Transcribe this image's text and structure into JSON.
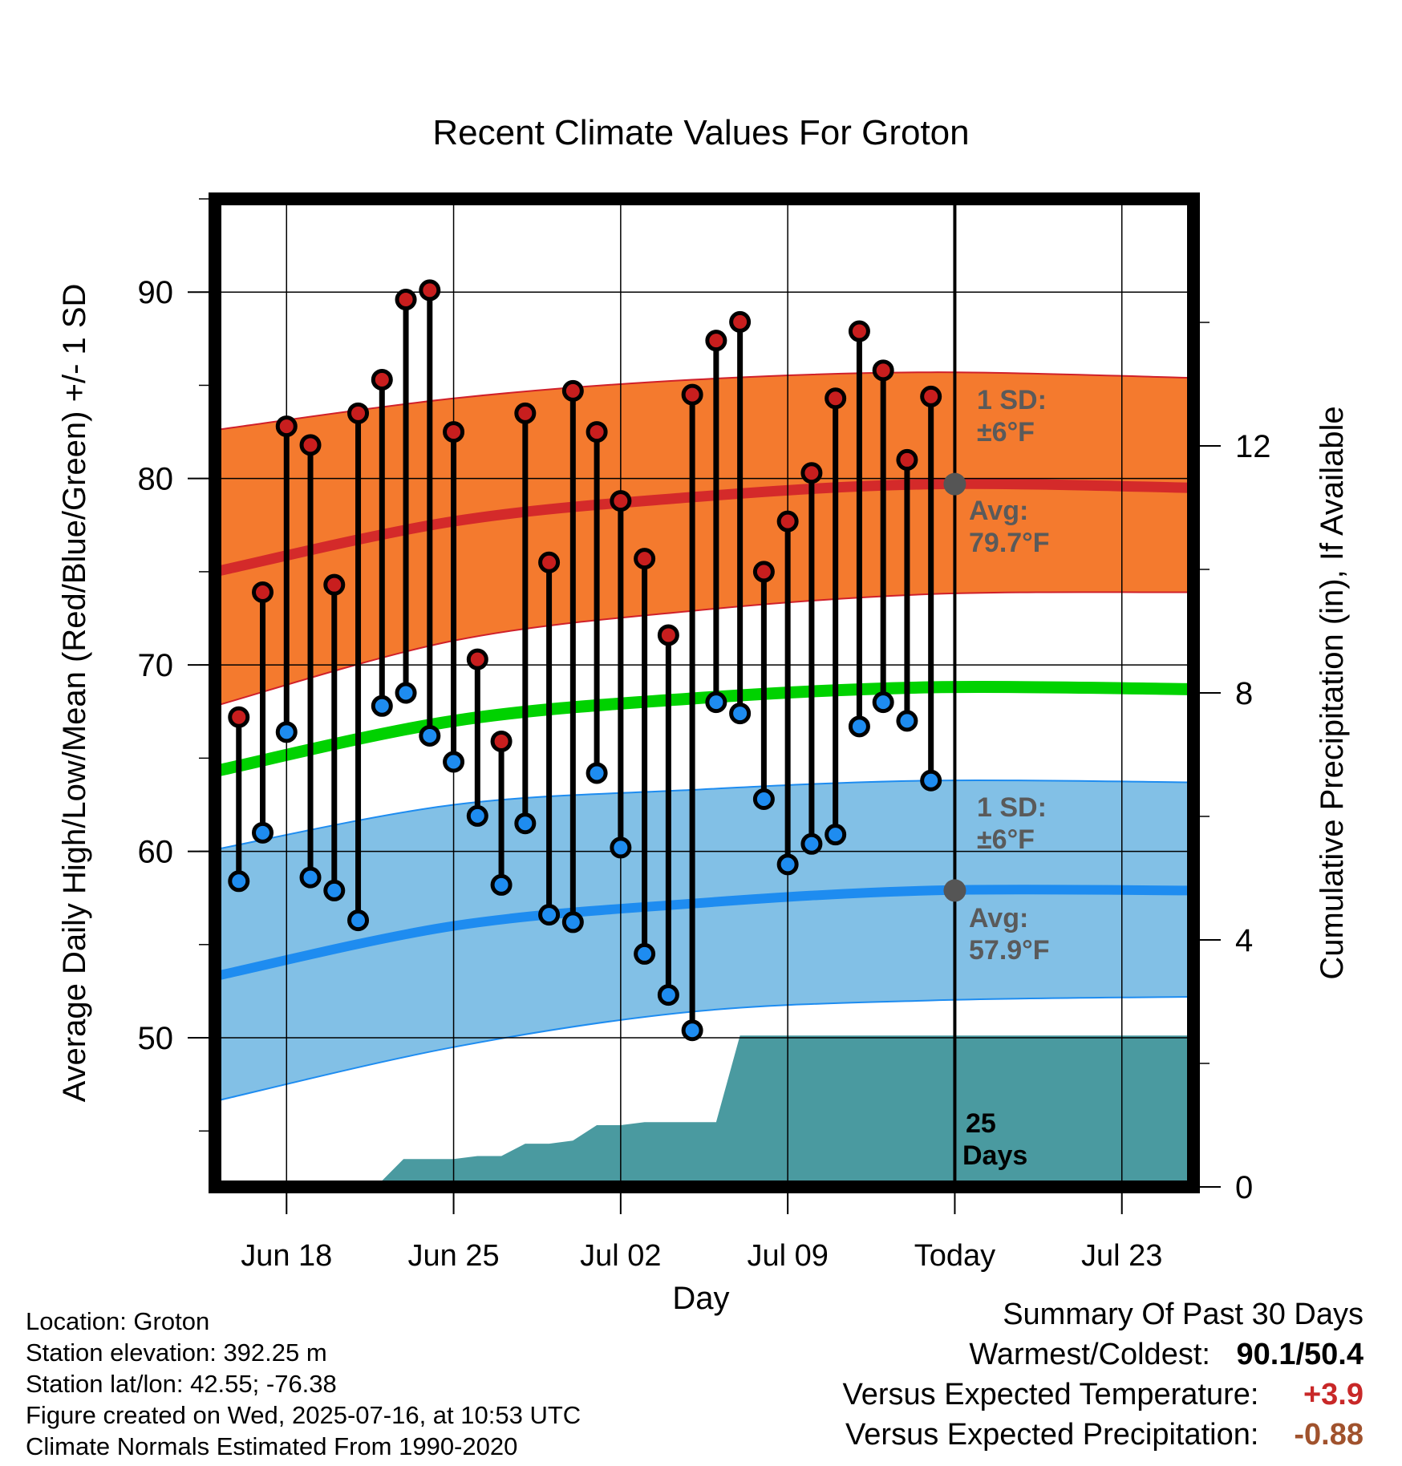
{
  "chart_data": {
    "type": "line",
    "title": "Recent Climate Values For Groton",
    "xlabel": "Day",
    "ylabel": "Average Daily High/Low/Mean (Red/Blue/Green) +/- 1 SD",
    "ylabel_right": "Cumulative Precipitation (in), If Available",
    "ylim": [
      42,
      95
    ],
    "ylim_right": [
      0,
      16
    ],
    "y_ticks": [
      50,
      60,
      70,
      80,
      90
    ],
    "y_ticks_right": [
      0,
      4,
      8,
      12
    ],
    "xlim": [
      "2025-06-15",
      "2025-07-26"
    ],
    "x_ticks": [
      {
        "date": "2025-06-18",
        "label": "Jun 18"
      },
      {
        "date": "2025-06-25",
        "label": "Jun 25"
      },
      {
        "date": "2025-07-02",
        "label": "Jul 02"
      },
      {
        "date": "2025-07-09",
        "label": "Jul 09"
      },
      {
        "date": "2025-07-16",
        "label": "Today"
      },
      {
        "date": "2025-07-23",
        "label": "Jul 23"
      }
    ],
    "grid": true,
    "today": "2025-07-16",
    "days": [
      "2025-06-16",
      "2025-06-17",
      "2025-06-18",
      "2025-06-19",
      "2025-06-20",
      "2025-06-21",
      "2025-06-22",
      "2025-06-23",
      "2025-06-24",
      "2025-06-25",
      "2025-06-26",
      "2025-06-27",
      "2025-06-28",
      "2025-06-29",
      "2025-06-30",
      "2025-07-01",
      "2025-07-02",
      "2025-07-03",
      "2025-07-04",
      "2025-07-05",
      "2025-07-06",
      "2025-07-07",
      "2025-07-08",
      "2025-07-09",
      "2025-07-10",
      "2025-07-11",
      "2025-07-12",
      "2025-07-13",
      "2025-07-14",
      "2025-07-15"
    ],
    "series": [
      {
        "name": "High",
        "color": "#c81e1e",
        "values": [
          67.2,
          73.9,
          82.8,
          81.8,
          74.3,
          83.5,
          85.3,
          89.6,
          90.1,
          82.5,
          70.3,
          65.9,
          83.5,
          75.5,
          84.7,
          82.5,
          78.8,
          75.7,
          71.6,
          84.5,
          87.4,
          88.4,
          75.0,
          77.7,
          80.3,
          84.3,
          87.9,
          85.8,
          81.0,
          84.4
        ]
      },
      {
        "name": "Low",
        "color": "#1e8cf0",
        "values": [
          58.4,
          61.0,
          66.4,
          58.6,
          57.9,
          56.3,
          67.8,
          68.5,
          66.2,
          64.8,
          61.9,
          58.2,
          61.5,
          56.6,
          56.2,
          64.2,
          60.2,
          54.5,
          52.3,
          50.4,
          68.0,
          67.4,
          62.8,
          59.3,
          60.4,
          60.9,
          66.7,
          68.0,
          67.0,
          63.8
        ]
      }
    ],
    "normals": {
      "dates": [
        "2025-06-15",
        "2025-06-25",
        "2025-07-05",
        "2025-07-15",
        "2025-07-26"
      ],
      "high_avg": [
        75.0,
        77.7,
        79.0,
        79.7,
        79.5
      ],
      "high_upper": [
        82.6,
        84.3,
        85.3,
        85.7,
        85.4
      ],
      "high_lower": [
        67.8,
        71.3,
        72.9,
        73.8,
        73.9
      ],
      "low_avg": [
        53.3,
        56.0,
        57.2,
        57.9,
        57.9
      ],
      "low_upper": [
        60.1,
        62.5,
        63.3,
        63.8,
        63.7
      ],
      "low_lower": [
        46.6,
        49.5,
        51.4,
        52.0,
        52.2
      ],
      "mean_avg": [
        64.3,
        67.0,
        68.2,
        68.8,
        68.7
      ],
      "high_color": "#f47a2e",
      "low_color": "#82c0e6",
      "mean_color": "#00d200"
    },
    "precipitation": {
      "color": "#4a9aa0",
      "dates": [
        "2025-06-15",
        "2025-06-19",
        "2025-06-19.9",
        "2025-06-22",
        "2025-06-22.9",
        "2025-06-25",
        "2025-06-26",
        "2025-06-27",
        "2025-06-28",
        "2025-06-29",
        "2025-06-30",
        "2025-07-01",
        "2025-07-02",
        "2025-07-03",
        "2025-07-04",
        "2025-07-05",
        "2025-07-06",
        "2025-07-07",
        "2025-07-26"
      ],
      "values": [
        0,
        0.1,
        0.1,
        0.1,
        0.45,
        0.45,
        0.5,
        0.5,
        0.7,
        0.7,
        0.75,
        1.0,
        1.0,
        1.05,
        1.05,
        1.05,
        1.05,
        2.45,
        2.45
      ]
    },
    "annotations": {
      "high_sd": "1 SD:",
      "high_sd_value": "±6°F",
      "high_avg_label": "Avg:",
      "high_avg_value": "79.7°F",
      "low_sd": "1 SD:",
      "low_sd_value": "±6°F",
      "low_avg_label": "Avg:",
      "low_avg_value": "57.9°F",
      "precip_days_number": "25",
      "precip_days_word": "Days"
    }
  },
  "info": {
    "location": "Location: Groton",
    "elevation": "Station elevation: 392.25 m",
    "latlon": "Station lat/lon: 42.55; -76.38",
    "created": "Figure created on Wed, 2025-07-16, at 10:53 UTC",
    "normals": "Climate Normals Estimated From 1990-2020"
  },
  "summary": {
    "heading": "Summary Of Past 30 Days",
    "warmest_label": "Warmest/Coldest:",
    "warmest_value": "90.1/50.4",
    "temp_label": "Versus Expected Temperature:",
    "temp_value": "+3.9",
    "temp_color": "#c82828",
    "precip_label": "Versus Expected Precipitation:",
    "precip_value": "-0.88",
    "precip_color": "#a0522d"
  }
}
